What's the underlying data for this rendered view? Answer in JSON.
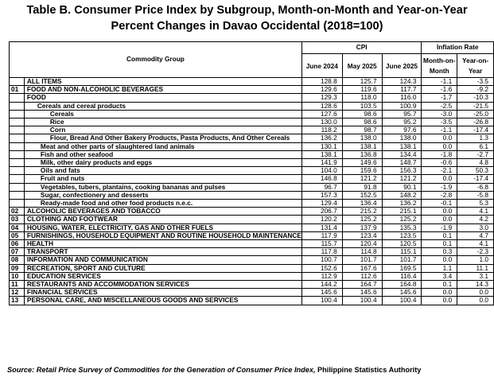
{
  "title_line1": "Table B. Consumer Price Index by Subgroup, Month-on-Month and Year-on-Year",
  "title_line2": "Percent Changes in Davao Occidental (2018=100)",
  "headers": {
    "commodity_group": "Commodity Group",
    "cpi": "CPI",
    "inflation_rate": "Inflation Rate",
    "june2024": "June 2024",
    "may2025": "May 2025",
    "june2025": "June 2025",
    "mom": "Month-on-Month",
    "yoy": "Year-on-Year"
  },
  "rows": [
    {
      "code": "",
      "name": "ALL ITEMS",
      "style": "bold",
      "jun24": "128.8",
      "may25": "125.7",
      "jun25": "124.3",
      "mom": "-1.1",
      "yoy": "-3.5"
    },
    {
      "code": "01",
      "name": "FOOD AND NON-ALCOHOLIC BEVERAGES",
      "style": "bold",
      "jun24": "129.6",
      "may25": "119.6",
      "jun25": "117.7",
      "mom": "-1.6",
      "yoy": "-9.2"
    },
    {
      "code": "",
      "name": "FOOD",
      "style": "bold",
      "jun24": "129.3",
      "may25": "118.0",
      "jun25": "116.0",
      "mom": "-1.7",
      "yoy": "-10.3"
    },
    {
      "code": "",
      "name": "Cereals and cereal products",
      "style": "bold lvl1",
      "jun24": "128.6",
      "may25": "103.5",
      "jun25": "100.9",
      "mom": "-2.5",
      "yoy": "-21.5"
    },
    {
      "code": "",
      "name": "Cereals",
      "style": "bold lvl2",
      "jun24": "127.6",
      "may25": "98.6",
      "jun25": "95.7",
      "mom": "-3.0",
      "yoy": "-25.0"
    },
    {
      "code": "",
      "name": "Rice",
      "style": "bold lvl2",
      "jun24": "130.0",
      "may25": "98.6",
      "jun25": "95.2",
      "mom": "-3.5",
      "yoy": "-26.8"
    },
    {
      "code": "",
      "name": "Corn",
      "style": "bold lvl2",
      "jun24": "118.2",
      "may25": "98.7",
      "jun25": "97.6",
      "mom": "-1.1",
      "yoy": "-17.4"
    },
    {
      "code": "",
      "name": "Flour, Bread And Other Bakery Products, Pasta Products, And Other Cereals",
      "style": "bold lvl2",
      "jun24": "136.2",
      "may25": "138.0",
      "jun25": "138.0",
      "mom": "0.0",
      "yoy": "1.3"
    },
    {
      "code": "",
      "name": "Meat and other parts of slaughtered land animals",
      "style": "bold lvl3",
      "jun24": "130.1",
      "may25": "138.1",
      "jun25": "138.1",
      "mom": "0.0",
      "yoy": "6.1"
    },
    {
      "code": "",
      "name": "Fish and other seafood",
      "style": "bold lvl3",
      "jun24": "138.1",
      "may25": "136.8",
      "jun25": "134.4",
      "mom": "-1.8",
      "yoy": "-2.7"
    },
    {
      "code": "",
      "name": "Milk, other dairy products and eggs",
      "style": "bold lvl3",
      "jun24": "141.9",
      "may25": "149.6",
      "jun25": "148.7",
      "mom": "-0.6",
      "yoy": "4.8"
    },
    {
      "code": "",
      "name": "Oils and fats",
      "style": "bold lvl3",
      "jun24": "104.0",
      "may25": "159.6",
      "jun25": "156.3",
      "mom": "-2.1",
      "yoy": "50.3"
    },
    {
      "code": "",
      "name": "Fruit and nuts",
      "style": "bold lvl3",
      "jun24": "146.8",
      "may25": "121.2",
      "jun25": "121.2",
      "mom": "0.0",
      "yoy": "-17.4"
    },
    {
      "code": "",
      "name": "Vegetables, tubers, plantains, cooking bananas and pulses",
      "style": "bold lvl3",
      "jun24": "96.7",
      "may25": "91.8",
      "jun25": "90.1",
      "mom": "-1.9",
      "yoy": "-6.8"
    },
    {
      "code": "",
      "name": "Sugar, confectionery and desserts",
      "style": "bold lvl3",
      "jun24": "157.3",
      "may25": "152.5",
      "jun25": "148.2",
      "mom": "-2.8",
      "yoy": "-5.8"
    },
    {
      "code": "",
      "name": "Ready-made food and other food products n.e.c.",
      "style": "bold lvl3",
      "jun24": "129.4",
      "may25": "136.4",
      "jun25": "136.2",
      "mom": "-0.1",
      "yoy": "5.3"
    },
    {
      "code": "02",
      "name": "ALCOHOLIC BEVERAGES AND TOBACCO",
      "style": "bold",
      "jun24": "206.7",
      "may25": "215.2",
      "jun25": "215.1",
      "mom": "0.0",
      "yoy": "4.1"
    },
    {
      "code": "03",
      "name": "CLOTHING AND FOOTWEAR",
      "style": "bold",
      "jun24": "120.2",
      "may25": "125.2",
      "jun25": "125.2",
      "mom": "0.0",
      "yoy": "4.2"
    },
    {
      "code": "04",
      "name": "HOUSING, WATER, ELECTRICITY, GAS AND OTHER FUELS",
      "style": "bold",
      "jun24": "131.4",
      "may25": "137.9",
      "jun25": "135.3",
      "mom": "-1.9",
      "yoy": "3.0"
    },
    {
      "code": "05",
      "name": "FURNISHINGS, HOUSEHOLD EQUIPMENT AND ROUTINE HOUSEHOLD MAINTENANCE",
      "style": "bold",
      "jun24": "117.9",
      "may25": "123.4",
      "jun25": "123.5",
      "mom": "0.1",
      "yoy": "4.7"
    },
    {
      "code": "06",
      "name": "HEALTH",
      "style": "bold",
      "jun24": "115.7",
      "may25": "120.4",
      "jun25": "120.5",
      "mom": "0.1",
      "yoy": "4.1"
    },
    {
      "code": "07",
      "name": "TRANSPORT",
      "style": "bold",
      "jun24": "117.8",
      "may25": "114.8",
      "jun25": "115.1",
      "mom": "0.3",
      "yoy": "-2.3"
    },
    {
      "code": "08",
      "name": "INFORMATION AND COMMUNICATION",
      "style": "bold",
      "jun24": "100.7",
      "may25": "101.7",
      "jun25": "101.7",
      "mom": "0.0",
      "yoy": "1.0"
    },
    {
      "code": "09",
      "name": "RECREATION, SPORT AND CULTURE",
      "style": "bold",
      "jun24": "152.6",
      "may25": "167.6",
      "jun25": "169.5",
      "mom": "1.1",
      "yoy": "11.1"
    },
    {
      "code": "10",
      "name": "EDUCATION SERVICES",
      "style": "bold",
      "jun24": "112.9",
      "may25": "112.6",
      "jun25": "116.4",
      "mom": "3.4",
      "yoy": "3.1"
    },
    {
      "code": "11",
      "name": "RESTAURANTS AND ACCOMMODATION SERVICES",
      "style": "bold",
      "jun24": "144.2",
      "may25": "164.7",
      "jun25": "164.8",
      "mom": "0.1",
      "yoy": "14.3"
    },
    {
      "code": "12",
      "name": "FINANCIAL SERVICES",
      "style": "bold",
      "jun24": "145.6",
      "may25": "145.6",
      "jun25": "145.6",
      "mom": "0.0",
      "yoy": "0.0"
    },
    {
      "code": "13",
      "name": "PERSONAL CARE, AND MISCELLANEOUS GOODS AND SERVICES",
      "style": "bold",
      "jun24": "100.4",
      "may25": "100.4",
      "jun25": "100.4",
      "mom": "0.0",
      "yoy": "0.0"
    }
  ],
  "source_prefix": "Source: Retail Price Survey of Commodities for the Generation of Consumer Price Index,",
  "source_org": " Philippine Statistics Authority"
}
